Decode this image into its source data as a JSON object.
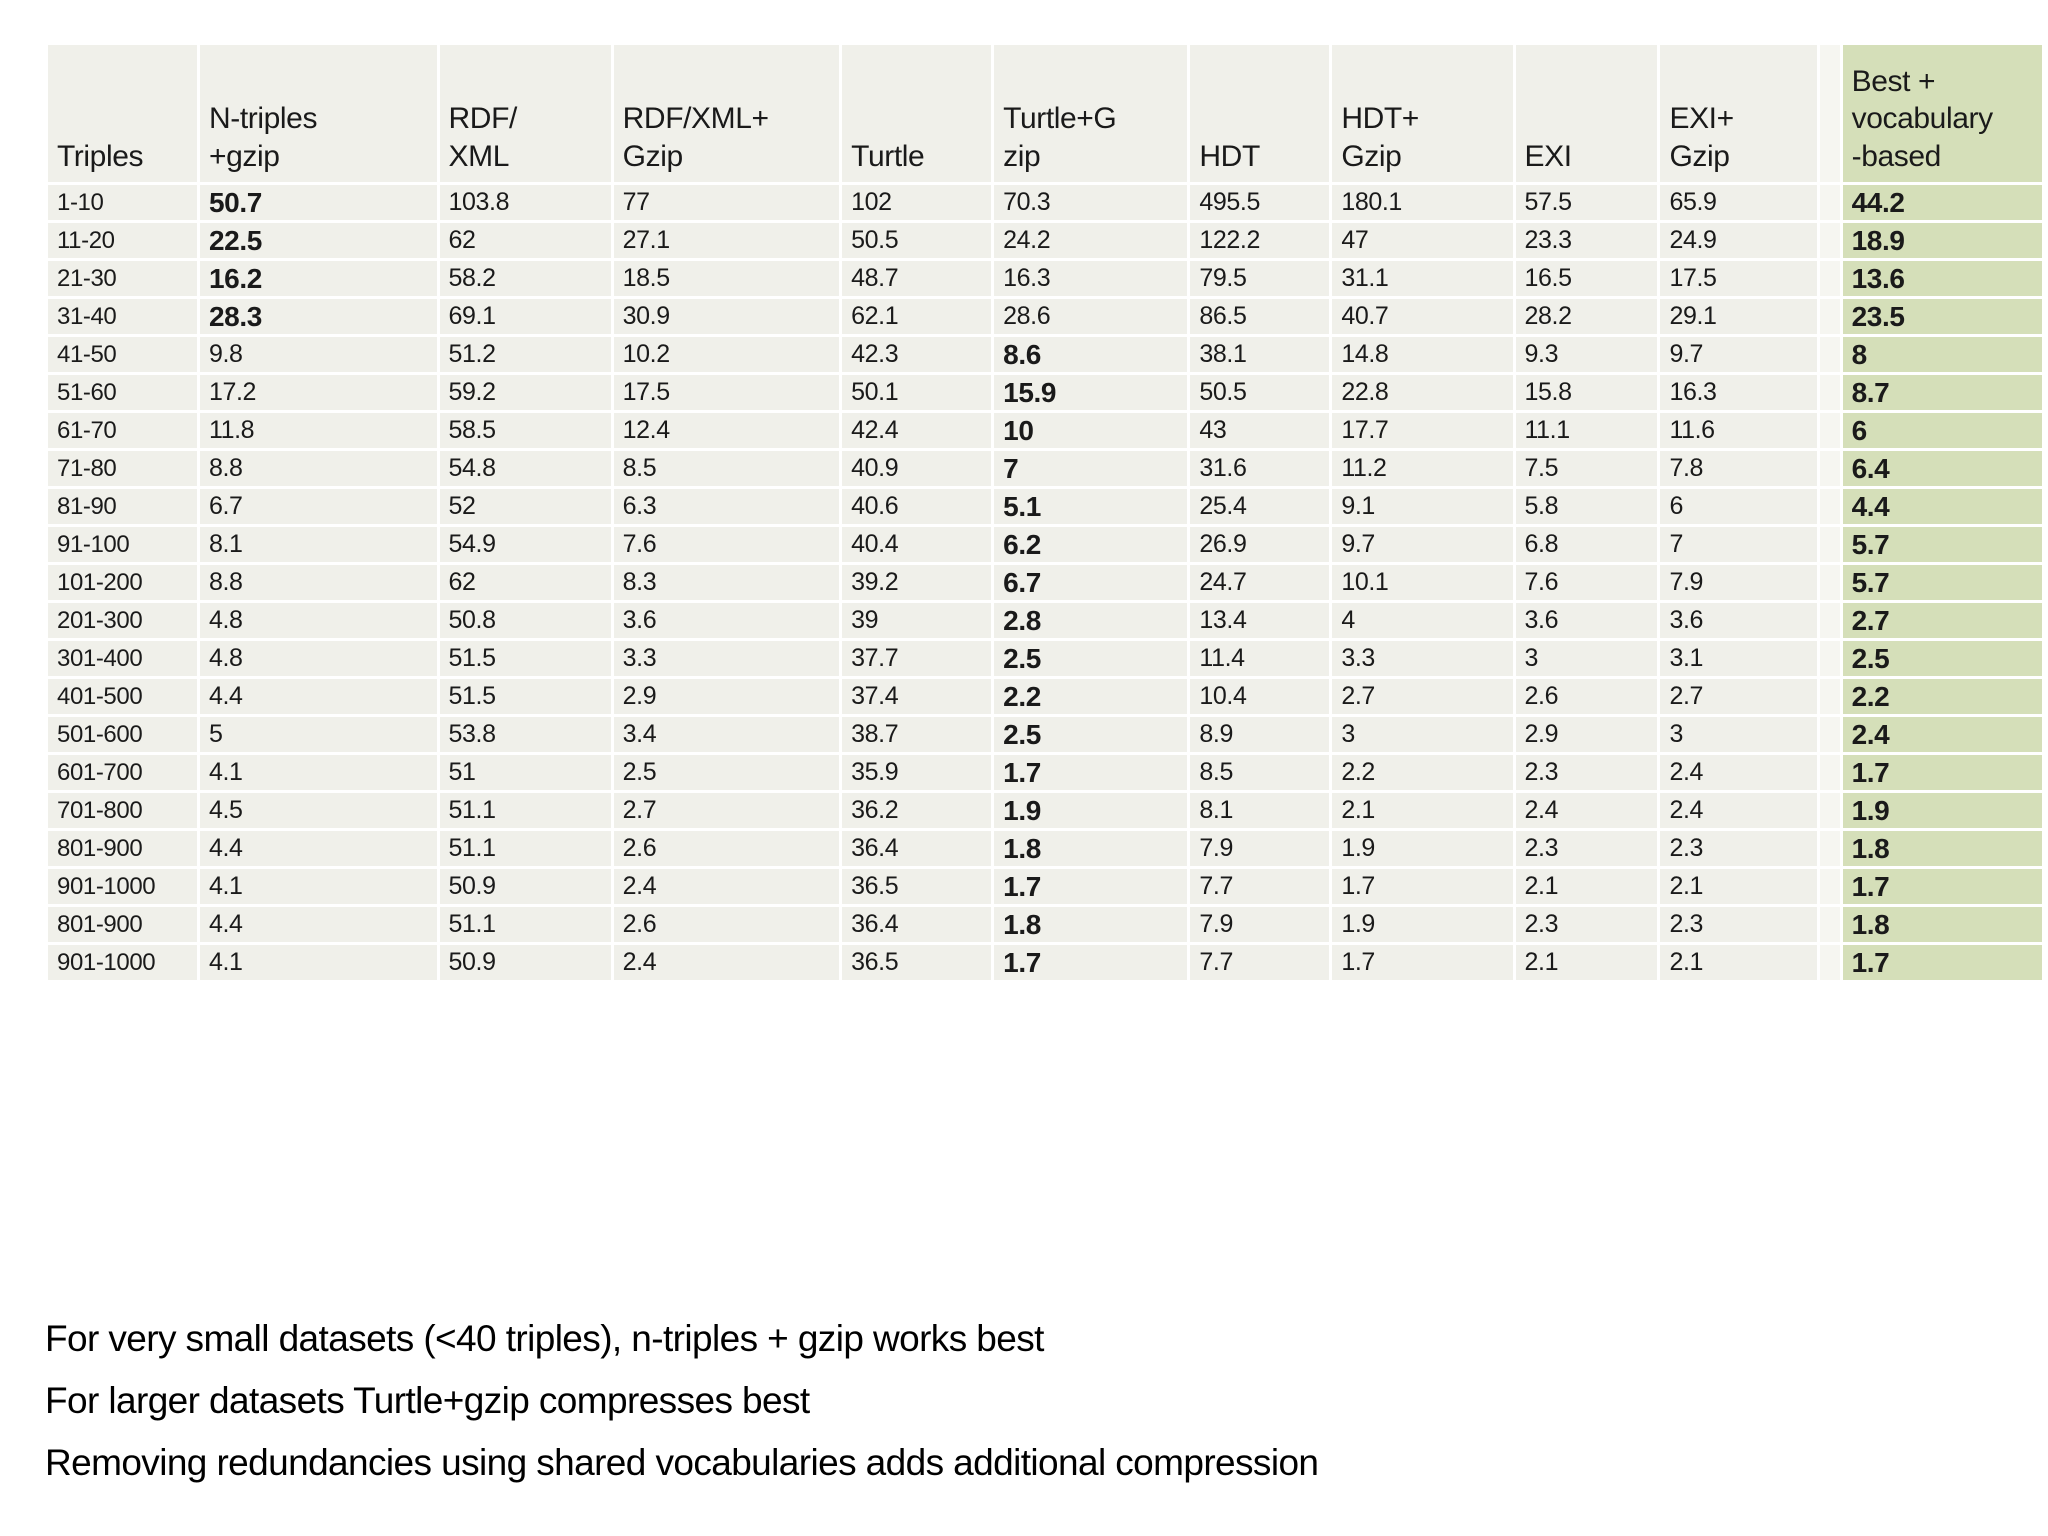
{
  "colors": {
    "cell_bg": "#f0f0ea",
    "best_column_bg": "#d5dfb9",
    "spacer_bg": "#f6f6f1",
    "text": "#1a1a1a"
  },
  "table": {
    "columns": [
      {
        "id": "triples",
        "label": "Triples"
      },
      {
        "id": "ntriples_gzip",
        "label": "N-triples\n+gzip"
      },
      {
        "id": "rdf_xml",
        "label": "RDF/\nXML"
      },
      {
        "id": "rdf_xml_gzip",
        "label": "RDF/XML+\nGzip"
      },
      {
        "id": "turtle",
        "label": "Turtle"
      },
      {
        "id": "turtle_gzip",
        "label": "Turtle+G\nzip"
      },
      {
        "id": "hdt",
        "label": "HDT"
      },
      {
        "id": "hdt_gzip",
        "label": "HDT+\nGzip"
      },
      {
        "id": "exi",
        "label": "EXI"
      },
      {
        "id": "exi_gzip",
        "label": "EXI+\nGzip"
      },
      {
        "id": "best",
        "label": "Best +\nvocabulary\n-based",
        "best": true,
        "spacer_before": true
      }
    ],
    "rows": [
      {
        "label": "1-10",
        "values": [
          "50.7",
          "103.8",
          "77",
          "102",
          "70.3",
          "495.5",
          "180.1",
          "57.5",
          "65.9",
          "44.2"
        ],
        "bold": [
          0,
          9
        ]
      },
      {
        "label": "11-20",
        "values": [
          "22.5",
          "62",
          "27.1",
          "50.5",
          "24.2",
          "122.2",
          "47",
          "23.3",
          "24.9",
          "18.9"
        ],
        "bold": [
          0,
          9
        ]
      },
      {
        "label": "21-30",
        "values": [
          "16.2",
          "58.2",
          "18.5",
          "48.7",
          "16.3",
          "79.5",
          "31.1",
          "16.5",
          "17.5",
          "13.6"
        ],
        "bold": [
          0,
          9
        ]
      },
      {
        "label": "31-40",
        "values": [
          "28.3",
          "69.1",
          "30.9",
          "62.1",
          "28.6",
          "86.5",
          "40.7",
          "28.2",
          "29.1",
          "23.5"
        ],
        "bold": [
          0,
          9
        ]
      },
      {
        "label": "41-50",
        "values": [
          "9.8",
          "51.2",
          "10.2",
          "42.3",
          "8.6",
          "38.1",
          "14.8",
          "9.3",
          "9.7",
          "8"
        ],
        "bold": [
          4,
          9
        ]
      },
      {
        "label": "51-60",
        "values": [
          "17.2",
          "59.2",
          "17.5",
          "50.1",
          "15.9",
          "50.5",
          "22.8",
          "15.8",
          "16.3",
          "8.7"
        ],
        "bold": [
          4,
          9
        ]
      },
      {
        "label": "61-70",
        "values": [
          "11.8",
          "58.5",
          "12.4",
          "42.4",
          "10",
          "43",
          "17.7",
          "11.1",
          "11.6",
          "6"
        ],
        "bold": [
          4,
          9
        ]
      },
      {
        "label": "71-80",
        "values": [
          "8.8",
          "54.8",
          "8.5",
          "40.9",
          "7",
          "31.6",
          "11.2",
          "7.5",
          "7.8",
          "6.4"
        ],
        "bold": [
          4,
          9
        ]
      },
      {
        "label": "81-90",
        "values": [
          "6.7",
          "52",
          "6.3",
          "40.6",
          "5.1",
          "25.4",
          "9.1",
          "5.8",
          "6",
          "4.4"
        ],
        "bold": [
          4,
          9
        ]
      },
      {
        "label": "91-100",
        "values": [
          "8.1",
          "54.9",
          "7.6",
          "40.4",
          "6.2",
          "26.9",
          "9.7",
          "6.8",
          "7",
          "5.7"
        ],
        "bold": [
          4,
          9
        ]
      },
      {
        "label": "101-200",
        "values": [
          "8.8",
          "62",
          "8.3",
          "39.2",
          "6.7",
          "24.7",
          "10.1",
          "7.6",
          "7.9",
          "5.7"
        ],
        "bold": [
          4,
          9
        ]
      },
      {
        "label": "201-300",
        "values": [
          "4.8",
          "50.8",
          "3.6",
          "39",
          "2.8",
          "13.4",
          "4",
          "3.6",
          "3.6",
          "2.7"
        ],
        "bold": [
          4,
          9
        ]
      },
      {
        "label": "301-400",
        "values": [
          "4.8",
          "51.5",
          "3.3",
          "37.7",
          "2.5",
          "11.4",
          "3.3",
          "3",
          "3.1",
          "2.5"
        ],
        "bold": [
          4,
          9
        ]
      },
      {
        "label": "401-500",
        "values": [
          "4.4",
          "51.5",
          "2.9",
          "37.4",
          "2.2",
          "10.4",
          "2.7",
          "2.6",
          "2.7",
          "2.2"
        ],
        "bold": [
          4,
          9
        ]
      },
      {
        "label": "501-600",
        "values": [
          "5",
          "53.8",
          "3.4",
          "38.7",
          "2.5",
          "8.9",
          "3",
          "2.9",
          "3",
          "2.4"
        ],
        "bold": [
          4,
          9
        ]
      },
      {
        "label": "601-700",
        "values": [
          "4.1",
          "51",
          "2.5",
          "35.9",
          "1.7",
          "8.5",
          "2.2",
          "2.3",
          "2.4",
          "1.7"
        ],
        "bold": [
          4,
          9
        ]
      },
      {
        "label": "701-800",
        "values": [
          "4.5",
          "51.1",
          "2.7",
          "36.2",
          "1.9",
          "8.1",
          "2.1",
          "2.4",
          "2.4",
          "1.9"
        ],
        "bold": [
          4,
          9
        ]
      },
      {
        "label": "801-900",
        "values": [
          "4.4",
          "51.1",
          "2.6",
          "36.4",
          "1.8",
          "7.9",
          "1.9",
          "2.3",
          "2.3",
          "1.8"
        ],
        "bold": [
          4,
          9
        ]
      },
      {
        "label": "901-1000",
        "values": [
          "4.1",
          "50.9",
          "2.4",
          "36.5",
          "1.7",
          "7.7",
          "1.7",
          "2.1",
          "2.1",
          "1.7"
        ],
        "bold": [
          4,
          9
        ]
      },
      {
        "label": "801-900",
        "values": [
          "4.4",
          "51.1",
          "2.6",
          "36.4",
          "1.8",
          "7.9",
          "1.9",
          "2.3",
          "2.3",
          "1.8"
        ],
        "bold": [
          4,
          9
        ]
      },
      {
        "label": "901-1000",
        "values": [
          "4.1",
          "50.9",
          "2.4",
          "36.5",
          "1.7",
          "7.7",
          "1.7",
          "2.1",
          "2.1",
          "1.7"
        ],
        "bold": [
          4,
          9
        ]
      }
    ]
  },
  "notes": [
    "For very small datasets (<40 triples), n-triples + gzip works best",
    "For larger datasets Turtle+gzip compresses best",
    "Removing redundancies using shared vocabularies adds additional compression"
  ]
}
